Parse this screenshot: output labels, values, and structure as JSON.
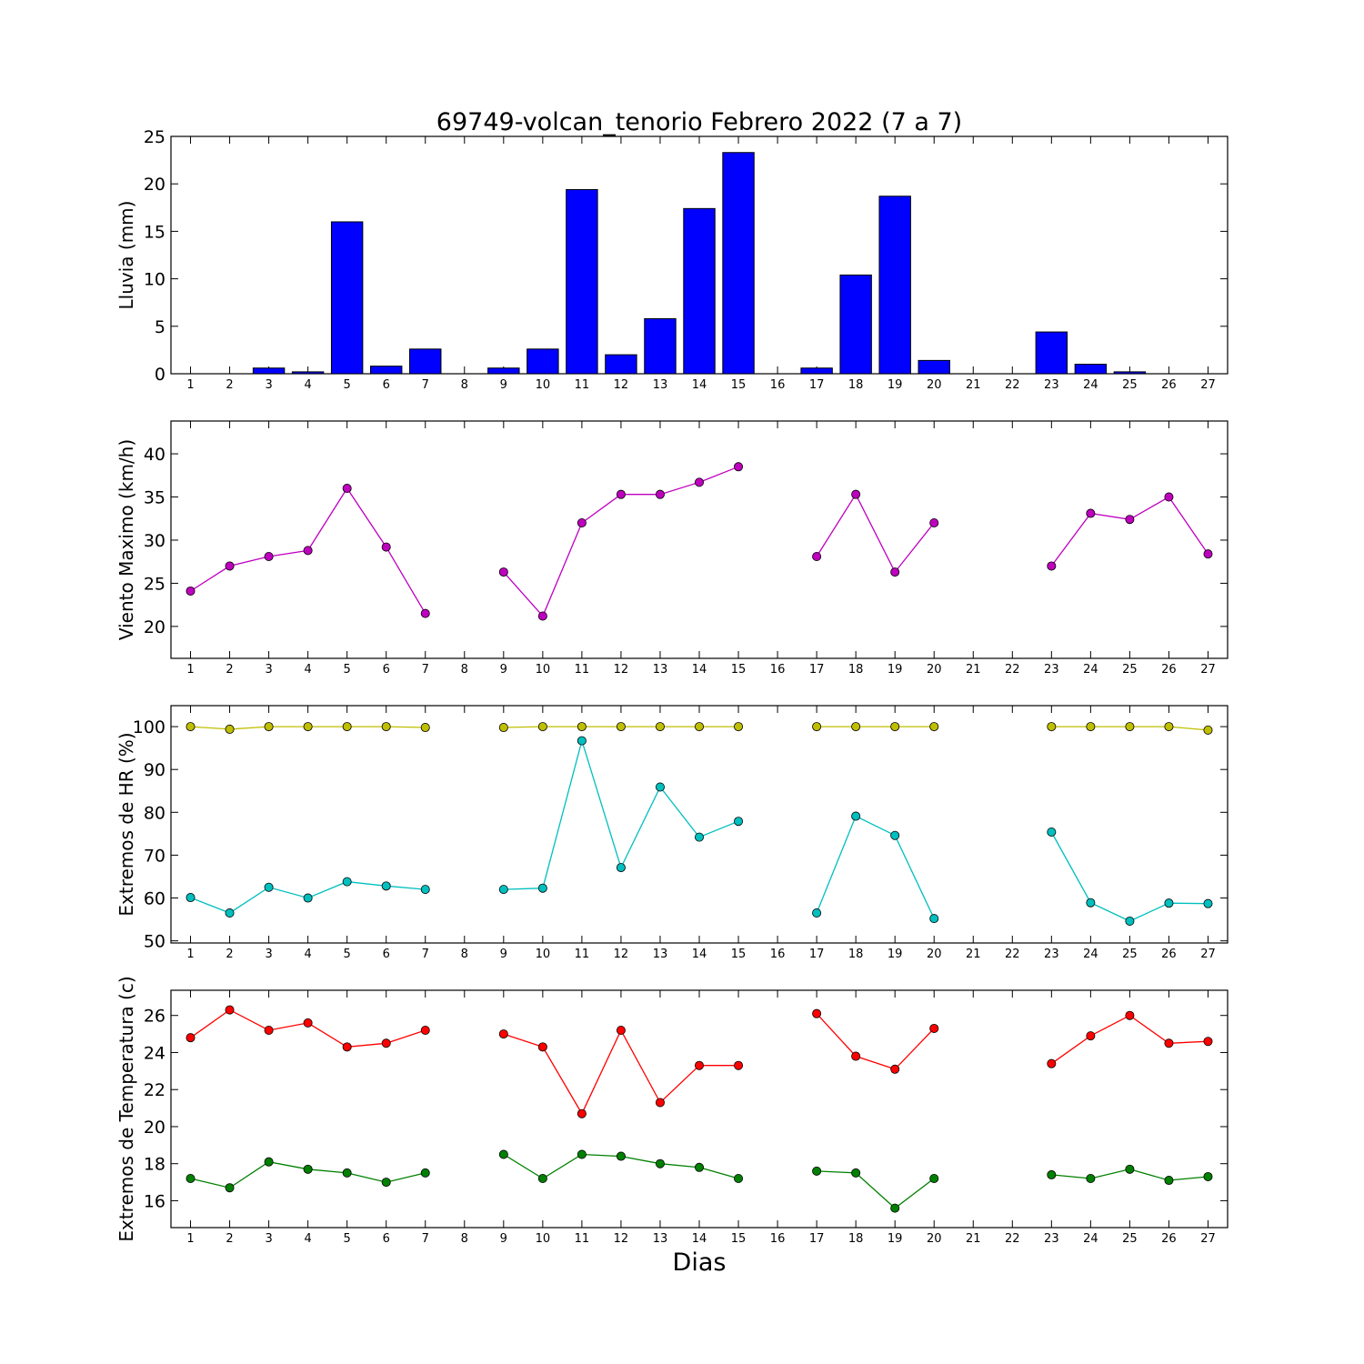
{
  "title": "69749-volcan_tenorio Febrero 2022  (7 a 7)",
  "xlabel": "Dias",
  "chart_data": [
    {
      "type": "bar",
      "ylabel": "Lluvia (mm)",
      "ylim": [
        0,
        25
      ],
      "yticks": [
        0,
        5,
        10,
        15,
        20,
        25
      ],
      "x": [
        1,
        2,
        3,
        4,
        5,
        6,
        7,
        8,
        9,
        10,
        11,
        12,
        13,
        14,
        15,
        16,
        17,
        18,
        19,
        20,
        21,
        22,
        23,
        24,
        25,
        26,
        27
      ],
      "values": [
        0,
        0,
        0.6,
        0.2,
        16.0,
        0.8,
        2.6,
        null,
        0.6,
        2.6,
        19.4,
        2.0,
        5.8,
        17.4,
        23.3,
        null,
        0.6,
        10.4,
        18.7,
        1.4,
        null,
        null,
        4.4,
        1.0,
        0.2,
        0,
        0
      ],
      "colors": {
        "bar": "#0000ff"
      }
    },
    {
      "type": "line",
      "ylabel": "Viento Maximo (km/h)",
      "ylim": [
        16.3,
        43.8
      ],
      "yticks": [
        20,
        25,
        30,
        35,
        40
      ],
      "x": [
        1,
        2,
        3,
        4,
        5,
        6,
        7,
        8,
        9,
        10,
        11,
        12,
        13,
        14,
        15,
        16,
        17,
        18,
        19,
        20,
        21,
        22,
        23,
        24,
        25,
        26,
        27
      ],
      "series": [
        {
          "values": [
            24.1,
            27.0,
            28.1,
            28.8,
            36.0,
            29.2,
            21.5,
            null,
            26.3,
            21.2,
            32.0,
            35.3,
            35.3,
            36.7,
            38.5,
            null,
            28.1,
            35.3,
            26.3,
            32.0,
            null,
            null,
            27.0,
            33.1,
            32.4,
            35.0,
            28.4
          ],
          "color": "#bf00bf"
        }
      ]
    },
    {
      "type": "line",
      "ylabel": "Extremos de HR (%)",
      "ylim": [
        49.5,
        104.9
      ],
      "yticks": [
        50,
        60,
        70,
        80,
        90,
        100
      ],
      "x": [
        1,
        2,
        3,
        4,
        5,
        6,
        7,
        8,
        9,
        10,
        11,
        12,
        13,
        14,
        15,
        16,
        17,
        18,
        19,
        20,
        21,
        22,
        23,
        24,
        25,
        26,
        27
      ],
      "series": [
        {
          "values": [
            100,
            99.4,
            100,
            100,
            100,
            100,
            99.8,
            null,
            99.8,
            100,
            100,
            100,
            100,
            100,
            100,
            null,
            100,
            100,
            100,
            100,
            null,
            null,
            100,
            100,
            100,
            100,
            99.2
          ],
          "color": "#bfbf00"
        },
        {
          "values": [
            60.1,
            56.5,
            62.5,
            60.0,
            63.8,
            62.8,
            62.0,
            null,
            62.0,
            62.3,
            96.7,
            67.1,
            85.9,
            74.2,
            77.9,
            null,
            56.5,
            79.1,
            74.6,
            55.2,
            null,
            null,
            75.4,
            58.9,
            54.6,
            58.8,
            58.7
          ],
          "color": "#00bfbf"
        }
      ]
    },
    {
      "type": "line",
      "ylabel": "Extremos de Temperatura (c)",
      "ylim": [
        14.55,
        27.36
      ],
      "yticks": [
        16,
        18,
        20,
        22,
        24,
        26
      ],
      "x": [
        1,
        2,
        3,
        4,
        5,
        6,
        7,
        8,
        9,
        10,
        11,
        12,
        13,
        14,
        15,
        16,
        17,
        18,
        19,
        20,
        21,
        22,
        23,
        24,
        25,
        26,
        27
      ],
      "series": [
        {
          "values": [
            24.8,
            26.3,
            25.2,
            25.6,
            24.3,
            24.5,
            25.2,
            null,
            25.0,
            24.3,
            20.7,
            25.2,
            21.3,
            23.3,
            23.3,
            null,
            26.1,
            23.8,
            23.1,
            25.3,
            null,
            null,
            23.4,
            24.9,
            26.0,
            24.5,
            24.6
          ],
          "color": "#ff0000"
        },
        {
          "values": [
            17.2,
            16.7,
            18.1,
            17.7,
            17.5,
            17.0,
            17.5,
            null,
            18.5,
            17.2,
            18.5,
            18.4,
            18.0,
            17.8,
            17.2,
            null,
            17.6,
            17.5,
            15.6,
            17.2,
            null,
            null,
            17.4,
            17.2,
            17.7,
            17.1,
            17.3
          ],
          "color": "#008000"
        }
      ]
    }
  ]
}
